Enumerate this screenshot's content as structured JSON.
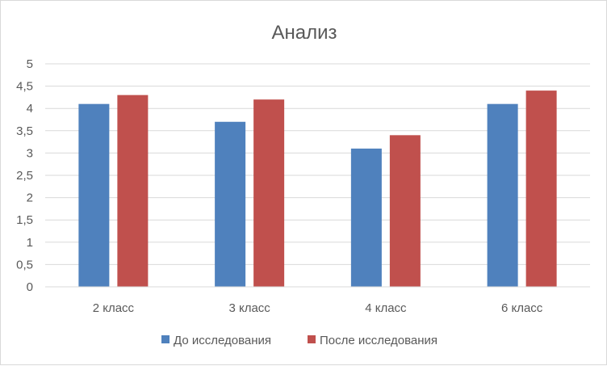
{
  "chart_data": {
    "type": "bar",
    "title": "Анализ",
    "categories": [
      "2 класс",
      "3 класс",
      "4 класс",
      "6 класс"
    ],
    "series": [
      {
        "name": "До исследования",
        "values": [
          4.1,
          3.7,
          3.1,
          4.1
        ],
        "color": "#4f81bd"
      },
      {
        "name": "После исследования",
        "values": [
          4.3,
          4.2,
          3.4,
          4.4
        ],
        "color": "#c0504d"
      }
    ],
    "y_ticks": [
      "0",
      "0,5",
      "1",
      "1,5",
      "2",
      "2,5",
      "3",
      "3,5",
      "4",
      "4,5",
      "5"
    ],
    "ylim": [
      0,
      5
    ],
    "grid": true,
    "gridline_color": "#d9d9d9",
    "legend_position": "bottom"
  }
}
